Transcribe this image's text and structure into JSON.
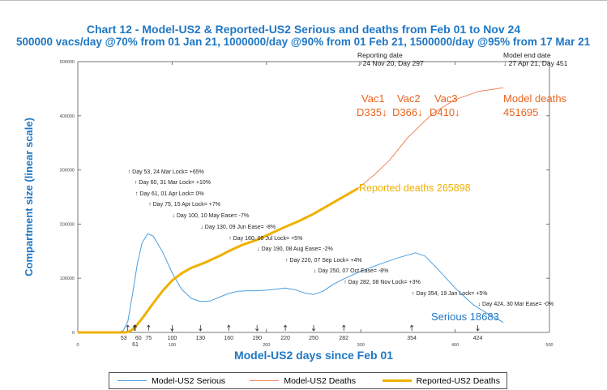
{
  "chart_data": {
    "type": "line",
    "title": "Chart 12 - Model-US2 & Reported-US2 Serious and deaths from Feb 01 to Nov 24",
    "subtitle": "500000 vacs/day @70% from 01 Jan 21, 1000000/day @90% from 01 Feb 21, 1500000/day @95% from 17 Mar 21",
    "xlabel": "Model-US2 days since Feb 01",
    "ylabel": "Compartment size (linear scale)",
    "xlim": [
      0,
      500
    ],
    "ylim": [
      0,
      500000
    ],
    "xticks": [
      0,
      100,
      200,
      300,
      400,
      500
    ],
    "yticks": [
      0,
      100000,
      200000,
      300000,
      400000,
      500000
    ],
    "grid": false,
    "legend_position": "bottom",
    "series": [
      {
        "name": "Model-US2 Serious",
        "color": "#4a9ee0",
        "width": 1,
        "points": [
          [
            0,
            0
          ],
          [
            40,
            0
          ],
          [
            48,
            3000
          ],
          [
            53,
            20000
          ],
          [
            58,
            70000
          ],
          [
            63,
            125000
          ],
          [
            68,
            165000
          ],
          [
            74,
            182000
          ],
          [
            80,
            178000
          ],
          [
            90,
            148000
          ],
          [
            100,
            110000
          ],
          [
            110,
            80000
          ],
          [
            120,
            63000
          ],
          [
            130,
            57000
          ],
          [
            140,
            58000
          ],
          [
            150,
            65000
          ],
          [
            160,
            72000
          ],
          [
            170,
            76000
          ],
          [
            180,
            77000
          ],
          [
            190,
            77000
          ],
          [
            200,
            78000
          ],
          [
            210,
            80000
          ],
          [
            220,
            82000
          ],
          [
            230,
            79000
          ],
          [
            240,
            73000
          ],
          [
            250,
            70000
          ],
          [
            260,
            76000
          ],
          [
            270,
            88000
          ],
          [
            282,
            99000
          ],
          [
            300,
            113000
          ],
          [
            320,
            126000
          ],
          [
            340,
            138000
          ],
          [
            358,
            147000
          ],
          [
            368,
            141000
          ],
          [
            380,
            120000
          ],
          [
            400,
            82000
          ],
          [
            420,
            50000
          ],
          [
            440,
            29000
          ],
          [
            451,
            18683
          ]
        ]
      },
      {
        "name": "Model-US2 Deaths",
        "color": "#f0855a",
        "width": 1,
        "points": [
          [
            0,
            0
          ],
          [
            50,
            0
          ],
          [
            55,
            2000
          ],
          [
            60,
            9000
          ],
          [
            70,
            32000
          ],
          [
            80,
            56000
          ],
          [
            90,
            78000
          ],
          [
            100,
            97000
          ],
          [
            110,
            110000
          ],
          [
            120,
            120000
          ],
          [
            135,
            130000
          ],
          [
            150,
            142000
          ],
          [
            160,
            151000
          ],
          [
            175,
            163000
          ],
          [
            190,
            172000
          ],
          [
            205,
            184000
          ],
          [
            220,
            196000
          ],
          [
            235,
            207000
          ],
          [
            250,
            220000
          ],
          [
            265,
            235000
          ],
          [
            280,
            250000
          ],
          [
            297,
            266000
          ],
          [
            315,
            292000
          ],
          [
            330,
            317000
          ],
          [
            350,
            360000
          ],
          [
            376,
            404000
          ],
          [
            400,
            430000
          ],
          [
            425,
            445000
          ],
          [
            451,
            451695
          ]
        ]
      },
      {
        "name": "Reported-US2 Deaths",
        "color": "#f0b000",
        "width": 3,
        "points": [
          [
            0,
            0
          ],
          [
            50,
            0
          ],
          [
            55,
            2000
          ],
          [
            60,
            8000
          ],
          [
            70,
            30000
          ],
          [
            80,
            54000
          ],
          [
            90,
            77000
          ],
          [
            100,
            96000
          ],
          [
            110,
            109000
          ],
          [
            120,
            119000
          ],
          [
            135,
            129000
          ],
          [
            150,
            141000
          ],
          [
            160,
            150000
          ],
          [
            175,
            162000
          ],
          [
            190,
            171000
          ],
          [
            205,
            183000
          ],
          [
            220,
            195000
          ],
          [
            235,
            206000
          ],
          [
            250,
            219000
          ],
          [
            265,
            234000
          ],
          [
            280,
            249000
          ],
          [
            297,
            265898
          ]
        ]
      }
    ],
    "annotations": {
      "interventions": [
        {
          "day": 53,
          "dir": "up",
          "text": "Day 53, 24 Mar Lock= +65%"
        },
        {
          "day": 60,
          "dir": "up",
          "text": "Day 60, 31 Mar Lock= +10%"
        },
        {
          "day": 61,
          "dir": "up",
          "text": "Day 61, 01 Apr Lock= 0%"
        },
        {
          "day": 75,
          "dir": "up",
          "text": "Day 75, 15 Apr Lock= +7%"
        },
        {
          "day": 100,
          "dir": "down",
          "text": "Day 100, 10 May Ease= -7%"
        },
        {
          "day": 130,
          "dir": "down",
          "text": "Day 130, 09 Jun Ease= -8%"
        },
        {
          "day": 160,
          "dir": "up",
          "text": "Day 160, 09 Jul Lock= +5%"
        },
        {
          "day": 190,
          "dir": "down",
          "text": "Day 190, 08 Aug Ease= -2%"
        },
        {
          "day": 220,
          "dir": "up",
          "text": "Day 220, 07 Sep Lock= +4%"
        },
        {
          "day": 250,
          "dir": "down",
          "text": "Day 250, 07 Oct Ease= -8%"
        },
        {
          "day": 282,
          "dir": "up",
          "text": "Day 282, 08 Nov Lock= +3%"
        },
        {
          "day": 354,
          "dir": "up",
          "text": "Day 354, 19 Jan Lock= +5%"
        },
        {
          "day": 424,
          "dir": "down",
          "text": "Day 424, 30 Mar Ease= -0%"
        }
      ],
      "day_tick_labels": [
        "53",
        "60",
        "61",
        "75",
        "100",
        "130",
        "160",
        "190",
        "220",
        "250",
        "282",
        "354",
        "424"
      ],
      "reporting_date_label": "Reporting date",
      "reporting_date": "↓ 24 Nov 20, Day 297",
      "model_end_label": "Model end date",
      "model_end": "↓ 27 Apr 21, Day 451",
      "vac1": "Vac1",
      "vac1_day": "D335↓",
      "vac2": "Vac2",
      "vac2_day": "D366↓",
      "vac3": "Vac3",
      "vac3_day": "D410↓",
      "model_deaths_label": "Model deaths",
      "model_deaths_value": "451695",
      "reported_deaths": "Reported deaths 265898",
      "serious_label": "Serious 18683"
    }
  }
}
